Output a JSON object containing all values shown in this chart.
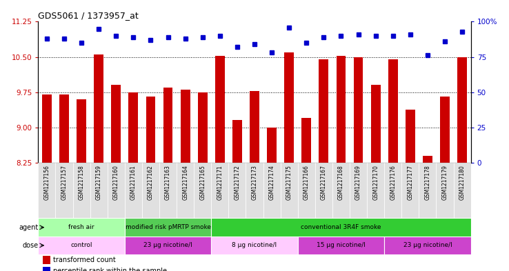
{
  "title": "GDS5061 / 1373957_at",
  "samples": [
    "GSM1217156",
    "GSM1217157",
    "GSM1217158",
    "GSM1217159",
    "GSM1217160",
    "GSM1217161",
    "GSM1217162",
    "GSM1217163",
    "GSM1217164",
    "GSM1217165",
    "GSM1217171",
    "GSM1217172",
    "GSM1217173",
    "GSM1217174",
    "GSM1217175",
    "GSM1217166",
    "GSM1217167",
    "GSM1217168",
    "GSM1217169",
    "GSM1217170",
    "GSM1217176",
    "GSM1217177",
    "GSM1217178",
    "GSM1217179",
    "GSM1217180"
  ],
  "bar_values": [
    9.7,
    9.7,
    9.6,
    10.55,
    9.9,
    9.75,
    9.65,
    9.85,
    9.8,
    9.75,
    10.52,
    9.15,
    9.77,
    9.0,
    10.6,
    9.2,
    10.45,
    10.52,
    10.5,
    9.9,
    10.45,
    9.38,
    8.4,
    9.65,
    10.5
  ],
  "dot_values": [
    88,
    88,
    85,
    95,
    90,
    89,
    87,
    89,
    88,
    89,
    90,
    82,
    84,
    78,
    96,
    85,
    89,
    90,
    91,
    90,
    90,
    91,
    76,
    86,
    93
  ],
  "bar_color": "#cc0000",
  "dot_color": "#0000cc",
  "ylim_left": [
    8.25,
    11.25
  ],
  "ylim_right": [
    0,
    100
  ],
  "yticks_left": [
    8.25,
    9.0,
    9.75,
    10.5,
    11.25
  ],
  "yticks_right": [
    0,
    25,
    50,
    75,
    100
  ],
  "ytick_labels_right": [
    "0",
    "25",
    "50",
    "75",
    "100%"
  ],
  "grid_lines": [
    9.0,
    9.75,
    10.5
  ],
  "agent_groups": [
    {
      "label": "fresh air",
      "start": 0,
      "end": 5,
      "color": "#aaffaa"
    },
    {
      "label": "modified risk pMRTP smoke",
      "start": 5,
      "end": 10,
      "color": "#55cc55"
    },
    {
      "label": "conventional 3R4F smoke",
      "start": 10,
      "end": 25,
      "color": "#33cc33"
    }
  ],
  "dose_groups": [
    {
      "label": "control",
      "start": 0,
      "end": 5,
      "color": "#ffccff"
    },
    {
      "label": "23 μg nicotine/l",
      "start": 5,
      "end": 10,
      "color": "#cc44cc"
    },
    {
      "label": "8 μg nicotine/l",
      "start": 10,
      "end": 15,
      "color": "#ffccff"
    },
    {
      "label": "15 μg nicotine/l",
      "start": 15,
      "end": 20,
      "color": "#cc44cc"
    },
    {
      "label": "23 μg nicotine/l",
      "start": 20,
      "end": 25,
      "color": "#cc44cc"
    }
  ],
  "legend_bar_label": "transformed count",
  "legend_dot_label": "percentile rank within the sample",
  "bar_color_hex": "#cc0000",
  "dot_color_hex": "#0000cc",
  "agent_label": "agent",
  "dose_label": "dose",
  "xlabel_bg": "#dddddd"
}
